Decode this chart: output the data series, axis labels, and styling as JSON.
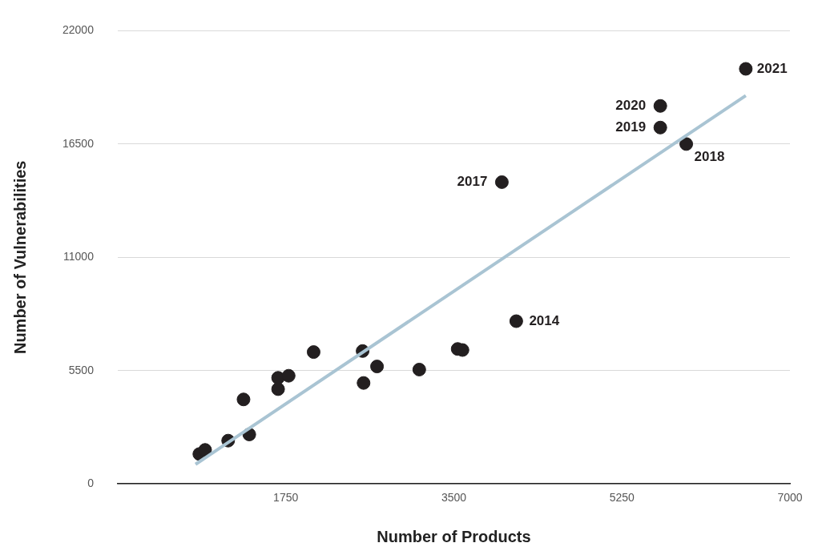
{
  "chart_data": {
    "type": "scatter",
    "xlabel": "Number of Products",
    "ylabel": "Number of Vulnerabilities",
    "xlim": [
      0,
      7000
    ],
    "xticks": [
      1750,
      3500,
      5250,
      7000
    ],
    "ylim": [
      0,
      22000
    ],
    "yticks": [
      0,
      5500,
      11000,
      16500,
      22000
    ],
    "grid": "y",
    "legend": false,
    "marker": "circle",
    "series": [
      {
        "color": "#231f20",
        "x": [
          850,
          910,
          1150,
          1370,
          1310,
          1670,
          1670,
          1780,
          2040,
          2550,
          2560,
          2700,
          3140,
          3540,
          3590,
          4150,
          4000,
          5650,
          5650,
          5920,
          6540
        ],
        "values": [
          1450,
          1650,
          2100,
          2400,
          4100,
          4600,
          5150,
          5250,
          6400,
          6450,
          4900,
          5700,
          5550,
          6550,
          6500,
          7900,
          14650,
          17300,
          18350,
          16500,
          20150
        ]
      },
      {
        "type": "line",
        "color": "#a9c4d3",
        "marker": "none",
        "x": [
          810,
          6540
        ],
        "values": [
          950,
          18850
        ]
      }
    ],
    "annotations": [
      {
        "text": "2021",
        "x": 6540,
        "y": 20150
      },
      {
        "text": "2020",
        "x": 5650,
        "y": 18350
      },
      {
        "text": "2019",
        "x": 5650,
        "y": 17300
      },
      {
        "text": "2018",
        "x": 5920,
        "y": 16500
      },
      {
        "text": "2017",
        "x": 4000,
        "y": 14650
      },
      {
        "text": "2014",
        "x": 4150,
        "y": 7900
      }
    ]
  }
}
